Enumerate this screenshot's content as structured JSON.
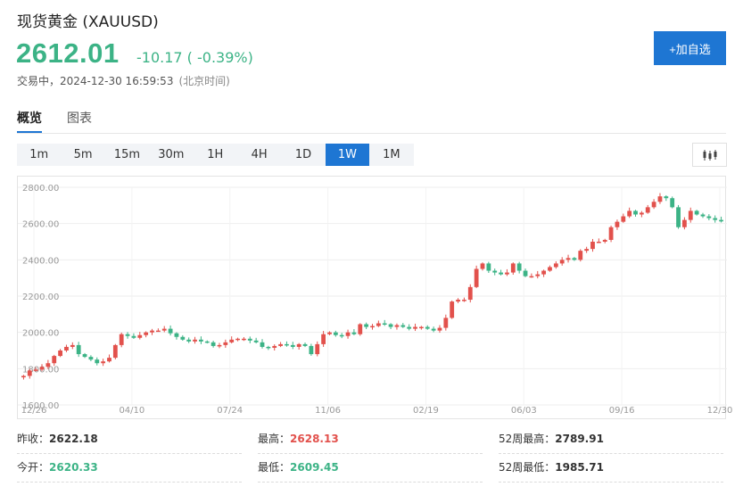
{
  "header": {
    "title": "现货黄金 (XAUUSD)",
    "price": "2612.01",
    "change": "-10.17 ( -0.39%)",
    "status": "交易中，2024-12-30 16:59:53",
    "timezone": "(北京时间)",
    "add_button": "+加自选"
  },
  "tabs": [
    {
      "label": "概览",
      "active": true
    },
    {
      "label": "图表",
      "active": false
    }
  ],
  "periods": [
    "1m",
    "5m",
    "15m",
    "30m",
    "1H",
    "4H",
    "1D",
    "1W",
    "1M"
  ],
  "active_period": "1W",
  "chart_type_icon": "candlestick-icon",
  "colors": {
    "up": "#e2514c",
    "down": "#3cb386",
    "accent": "#1e76d3"
  },
  "chart_data": {
    "type": "candlestick",
    "y_ticks": [
      "2800.00",
      "2600.00",
      "2400.00",
      "2200.00",
      "2000.00",
      "1800.00",
      "1600.00"
    ],
    "x_ticks": [
      "12/26",
      "04/10",
      "07/24",
      "11/06",
      "02/19",
      "06/03",
      "09/16",
      "12/30"
    ],
    "ylim": [
      1600,
      2800
    ],
    "grid": true,
    "series": [
      {
        "values": [
          1760,
          1790,
          1795,
          1810,
          1830,
          1870,
          1900,
          1920,
          1930,
          1880,
          1865,
          1850,
          1830,
          1840,
          1860,
          1930,
          1990,
          1980,
          1970,
          1985,
          2000,
          2010,
          2010,
          2020,
          1995,
          1975,
          1960,
          1950,
          1960,
          1950,
          1945,
          1925,
          1930,
          1945,
          1960,
          1965,
          1965,
          1955,
          1945,
          1920,
          1915,
          1925,
          1935,
          1930,
          1920,
          1935,
          1925,
          1880,
          1935,
          1990,
          2000,
          1985,
          1980,
          2000,
          1990,
          2045,
          2030,
          2035,
          2050,
          2045,
          2030,
          2040,
          2030,
          2020,
          2030,
          2030,
          2020,
          2010,
          2025,
          2080,
          2170,
          2180,
          2180,
          2250,
          2350,
          2380,
          2340,
          2330,
          2320,
          2330,
          2380,
          2340,
          2310,
          2310,
          2320,
          2340,
          2360,
          2380,
          2400,
          2410,
          2400,
          2450,
          2460,
          2500,
          2500,
          2510,
          2580,
          2610,
          2640,
          2670,
          2650,
          2660,
          2690,
          2720,
          2750,
          2740,
          2690,
          2580,
          2620,
          2670,
          2650,
          2640,
          2630,
          2620,
          2612
        ]
      }
    ]
  },
  "stats": [
    {
      "label": "昨收：",
      "value": "2622.18",
      "color": "normal"
    },
    {
      "label": "最高：",
      "value": "2628.13",
      "color": "red"
    },
    {
      "label": "52周最高：",
      "value": "2789.91",
      "color": "normal"
    },
    {
      "label": "今开：",
      "value": "2620.33",
      "color": "green"
    },
    {
      "label": "最低：",
      "value": "2609.45",
      "color": "green"
    },
    {
      "label": "52周最低：",
      "value": "1985.71",
      "color": "normal"
    }
  ]
}
